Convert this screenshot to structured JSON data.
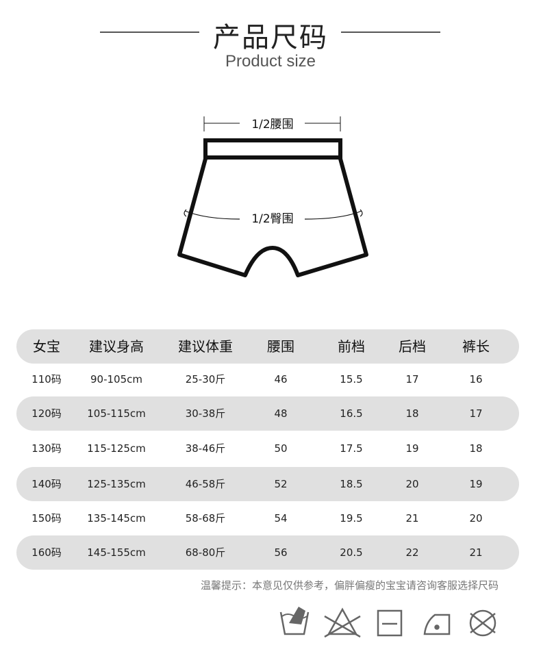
{
  "header": {
    "title": "产品尺码",
    "subtitle": "Product size"
  },
  "diagram": {
    "waist_label": "1/2腰围",
    "hip_label": "1/2臀围"
  },
  "table": {
    "columns": [
      "女宝",
      "建议身高",
      "建议体重",
      "腰围",
      "前档",
      "后档",
      "裤长"
    ],
    "rows": [
      [
        "110码",
        "90-105cm",
        "25-30斤",
        "46",
        "15.5",
        "17",
        "16"
      ],
      [
        "120码",
        "105-115cm",
        "30-38斤",
        "48",
        "16.5",
        "18",
        "17"
      ],
      [
        "130码",
        "115-125cm",
        "38-46斤",
        "50",
        "17.5",
        "19",
        "18"
      ],
      [
        "140码",
        "125-135cm",
        "46-58斤",
        "52",
        "18.5",
        "20",
        "19"
      ],
      [
        "150码",
        "135-145cm",
        "58-68斤",
        "54",
        "19.5",
        "21",
        "20"
      ],
      [
        "160码",
        "145-155cm",
        "68-80斤",
        "56",
        "20.5",
        "22",
        "21"
      ]
    ]
  },
  "tip": "温馨提示：本意见仅供参考，偏胖偏瘦的宝宝请咨询客服选择尺码",
  "care_icons": [
    "hand-wash-icon",
    "no-bleach-icon",
    "dry-flat-icon",
    "low-iron-icon",
    "no-dry-clean-icon"
  ],
  "colors": {
    "row_shade": "#e0e0e0",
    "icon_gray": "#666666"
  }
}
